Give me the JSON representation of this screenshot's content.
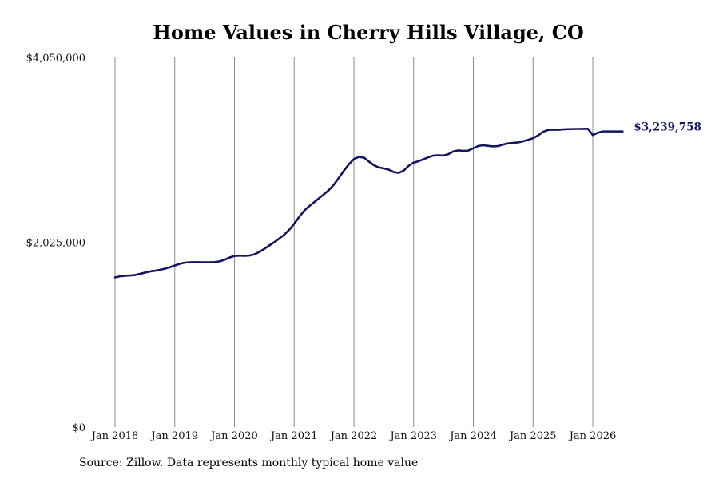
{
  "chart_data": {
    "type": "line",
    "title": "Home Values in Cherry Hills Village, CO",
    "xlabel": "",
    "ylabel": "",
    "ylim": [
      0,
      4050000
    ],
    "y_ticks": [
      "$0",
      "$2,025,000",
      "$4,050,000"
    ],
    "y_tick_values": [
      0,
      2025000,
      4050000
    ],
    "x_ticks": [
      "Jan 2018",
      "Jan 2019",
      "Jan 2020",
      "Jan 2021",
      "Jan 2022",
      "Jan 2023",
      "Jan 2024",
      "Jan 2025",
      "Jan 2026"
    ],
    "x_tick_values": [
      2018,
      2019,
      2020,
      2021,
      2022,
      2023,
      2024,
      2025,
      2026
    ],
    "xlim": [
      2017.3,
      2027.4
    ],
    "grid": "vertical",
    "line_color": "#14145f",
    "end_label": "$3,239,758",
    "x": [
      2018.0,
      2018.083,
      2018.167,
      2018.25,
      2018.333,
      2018.417,
      2018.5,
      2018.583,
      2018.667,
      2018.75,
      2018.833,
      2018.917,
      2019.0,
      2019.083,
      2019.167,
      2019.25,
      2019.333,
      2019.417,
      2019.5,
      2019.583,
      2019.667,
      2019.75,
      2019.833,
      2019.917,
      2020.0,
      2020.083,
      2020.167,
      2020.25,
      2020.333,
      2020.417,
      2020.5,
      2020.583,
      2020.667,
      2020.75,
      2020.833,
      2020.917,
      2021.0,
      2021.083,
      2021.167,
      2021.25,
      2021.333,
      2021.417,
      2021.5,
      2021.583,
      2021.667,
      2021.75,
      2021.833,
      2021.917,
      2022.0,
      2022.083,
      2022.167,
      2022.25,
      2022.333,
      2022.417,
      2022.5,
      2022.583,
      2022.667,
      2022.75,
      2022.833,
      2022.917,
      2023.0,
      2023.083,
      2023.167,
      2023.25,
      2023.333,
      2023.417,
      2023.5,
      2023.583,
      2023.667,
      2023.75,
      2023.833,
      2023.917,
      2024.0,
      2024.083,
      2024.167,
      2024.25,
      2024.333,
      2024.417,
      2024.5,
      2024.583,
      2024.667,
      2024.75,
      2024.833,
      2024.917,
      2025.0,
      2025.083,
      2025.167,
      2025.25,
      2025.333,
      2025.417,
      2025.5,
      2025.583,
      2025.667,
      2025.75,
      2025.833,
      2025.917,
      2026.0,
      2026.083,
      2026.167,
      2026.25,
      2026.333,
      2026.417,
      2026.5
    ],
    "series": [
      {
        "values": [
          1640000,
          1652000,
          1658000,
          1661000,
          1666000,
          1679000,
          1693000,
          1705000,
          1713000,
          1723000,
          1735000,
          1752000,
          1770000,
          1789000,
          1802000,
          1806000,
          1807000,
          1807000,
          1806000,
          1806000,
          1808000,
          1816000,
          1833000,
          1858000,
          1875000,
          1879000,
          1877000,
          1880000,
          1893000,
          1919000,
          1953000,
          1990000,
          2026000,
          2066000,
          2108000,
          2162000,
          2228000,
          2303000,
          2370000,
          2420000,
          2463000,
          2508000,
          2552000,
          2598000,
          2658000,
          2733000,
          2810000,
          2880000,
          2937000,
          2960000,
          2953000,
          2910000,
          2870000,
          2845000,
          2834000,
          2821000,
          2794000,
          2785000,
          2810000,
          2863000,
          2898000,
          2913000,
          2935000,
          2957000,
          2975000,
          2978000,
          2975000,
          2990000,
          3021000,
          3032000,
          3026000,
          3030000,
          3055000,
          3080000,
          3088000,
          3081000,
          3075000,
          3079000,
          3096000,
          3108000,
          3114000,
          3119000,
          3132000,
          3147000,
          3166000,
          3195000,
          3235000,
          3255000,
          3259000,
          3258000,
          3262000,
          3265000,
          3266000,
          3267000,
          3268000,
          3269000,
          3200000,
          3225000,
          3239758,
          3239758,
          3239758,
          3239758,
          3239758
        ]
      }
    ]
  },
  "source_note": "Source: Zillow. Data represents monthly typical home value"
}
